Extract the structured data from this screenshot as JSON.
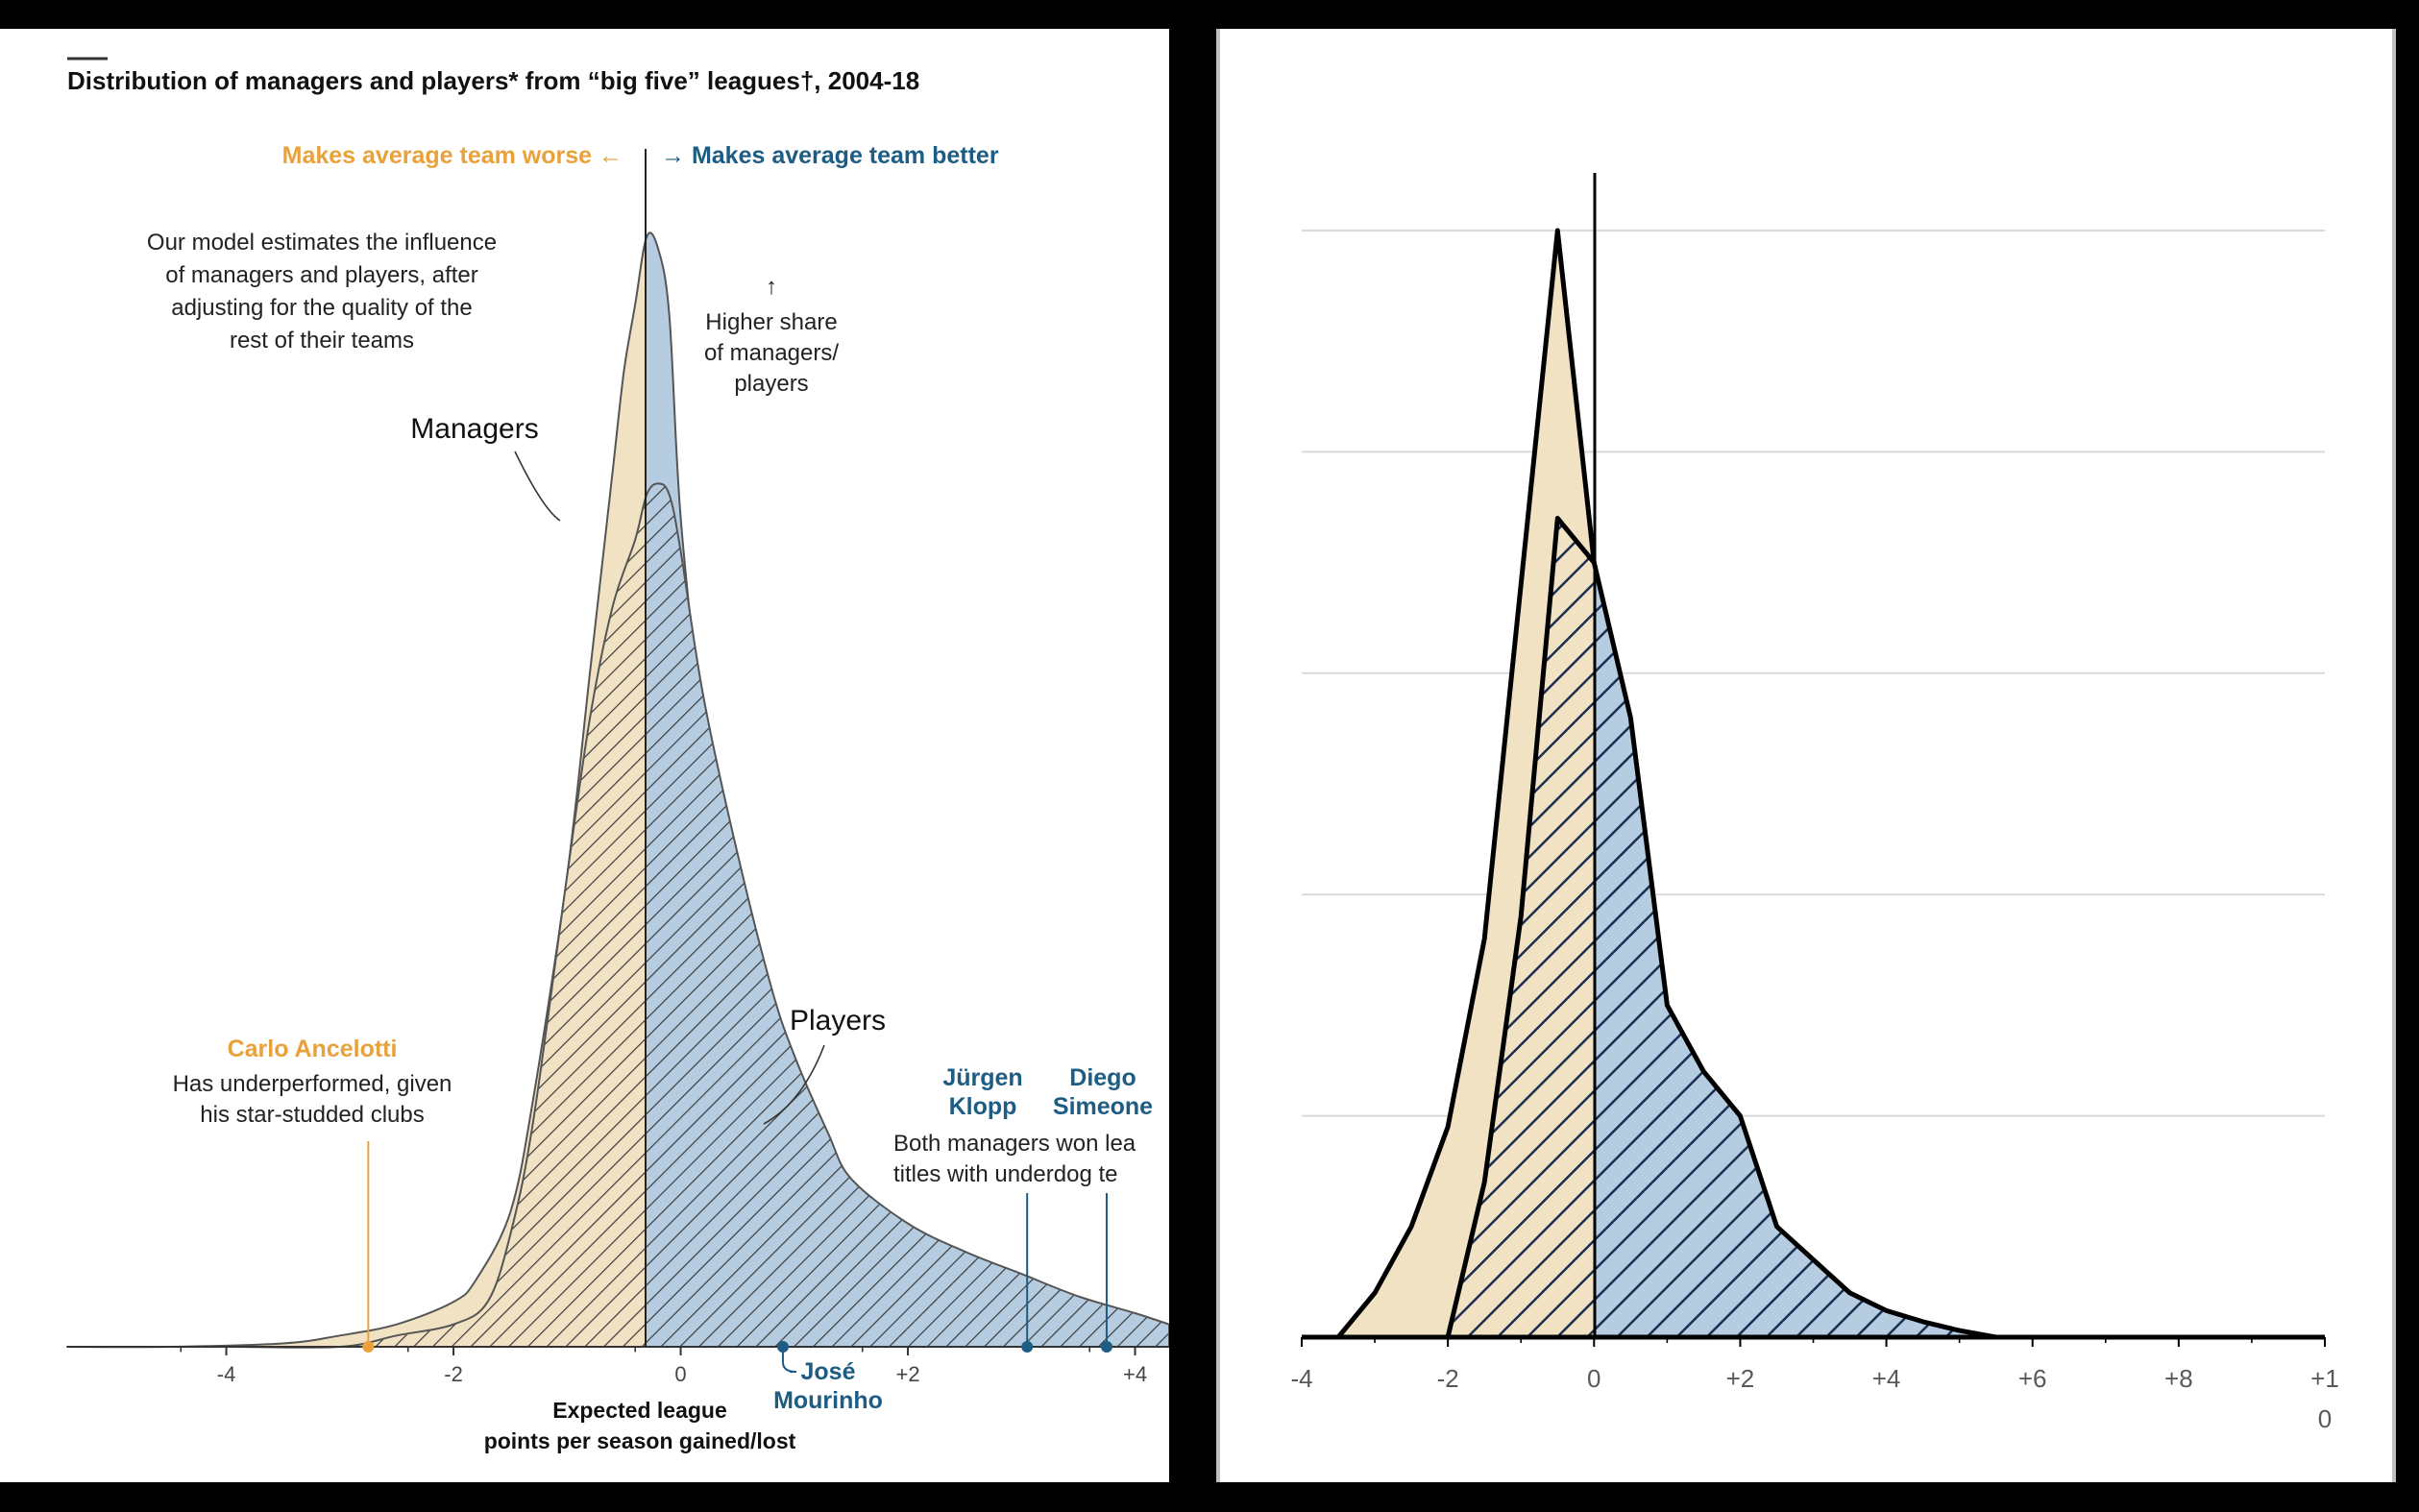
{
  "left_chart": {
    "title": "Distribution of managers and players* from “big five” leagues†, 2004-18",
    "worse_label": "Makes average team worse ←",
    "better_label": "→ Makes average team better",
    "model_note": [
      "Our model estimates the influence",
      "of managers and players, after",
      "adjusting for the quality of the",
      "rest of their teams"
    ],
    "arrow_note": [
      "↑",
      "Higher share",
      "of managers/",
      "players"
    ],
    "managers_label": "Managers",
    "players_label": "Players",
    "ancelotti": {
      "name": "Carlo Ancelotti",
      "note": [
        "Has underperformed, given",
        "his star-studded clubs"
      ],
      "value": -2.75
    },
    "klopp": {
      "name": [
        "Jürgen",
        "Klopp"
      ],
      "value": 3.05
    },
    "simeone": {
      "name": [
        "Diego",
        "Simeone"
      ],
      "value": 3.75
    },
    "both_note": [
      "Both managers won lea",
      "titles with underdog te"
    ],
    "mourinho": {
      "name": [
        "José",
        "Mourinho"
      ],
      "value": 0.9
    },
    "xaxis_title": [
      "Expected league",
      "points per season gained/lost"
    ],
    "colors": {
      "orange": "#e9a13b",
      "blue": "#1d5c83",
      "managers_fill": "#f2e2c4",
      "players_fill": "#b6cde1"
    }
  },
  "chart_data": [
    {
      "type": "area",
      "title": "Distribution of managers and players* from “big five” leagues†, 2004-18",
      "xlabel": "Expected league points per season gained/lost",
      "xlim": [
        -5.4,
        4.3
      ],
      "ylim": [
        0,
        1
      ],
      "xticks": [
        -4,
        -2,
        0,
        2,
        4
      ],
      "xtick_labels": [
        "-4",
        "-2",
        "0",
        "+2",
        "+4"
      ],
      "series": [
        {
          "name": "Managers",
          "x": [
            -5.4,
            -4.5,
            -3.5,
            -3.0,
            -2.5,
            -2.0,
            -1.8,
            -1.5,
            -1.3,
            -1.0,
            -0.8,
            -0.6,
            -0.5,
            -0.4,
            -0.3,
            -0.2,
            -0.1,
            0,
            0.2,
            0.3,
            0.5,
            0.8,
            1.0,
            1.3,
            1.5,
            2.0,
            2.5,
            3.0,
            3.5,
            4.0,
            4.3
          ],
          "y": [
            0,
            0,
            0.003,
            0.01,
            0.02,
            0.04,
            0.06,
            0.12,
            0.22,
            0.42,
            0.6,
            0.78,
            0.87,
            0.93,
            0.99,
            0.98,
            0.92,
            0.74,
            0.54,
            0.46,
            0.36,
            0.25,
            0.18,
            0.12,
            0.09,
            0.05,
            0.03,
            0.02,
            0.01,
            0.005,
            0.002
          ]
        },
        {
          "name": "Players",
          "x": [
            -5.4,
            -4.0,
            -3.0,
            -2.5,
            -2.0,
            -1.7,
            -1.5,
            -1.3,
            -1.0,
            -0.8,
            -0.6,
            -0.4,
            -0.3,
            -0.2,
            -0.1,
            0,
            0.2,
            0.5,
            0.8,
            1.0,
            1.3,
            1.5,
            2.0,
            2.5,
            3.0,
            3.5,
            4.0,
            4.3
          ],
          "y": [
            0,
            0,
            0,
            0.01,
            0.02,
            0.04,
            0.1,
            0.2,
            0.42,
            0.56,
            0.66,
            0.72,
            0.76,
            0.77,
            0.76,
            0.71,
            0.58,
            0.44,
            0.32,
            0.26,
            0.19,
            0.15,
            0.11,
            0.085,
            0.065,
            0.045,
            0.03,
            0.02
          ]
        }
      ]
    },
    {
      "type": "area",
      "title": "",
      "xlim": [
        -4,
        10
      ],
      "ylim": [
        0,
        5
      ],
      "xticks": [
        -4,
        -2,
        0,
        2,
        4,
        6,
        8,
        10
      ],
      "xtick_labels": [
        "-4",
        "-2",
        "0",
        "+2",
        "+4",
        "+6",
        "+8",
        "+1\n0"
      ],
      "gridlines": [
        1,
        2,
        3,
        4,
        5
      ],
      "series": [
        {
          "name": "Managers",
          "x": [
            -3.5,
            -3.0,
            -2.5,
            -2.0,
            -1.5,
            -1.0,
            -0.5,
            0,
            0.5,
            1.0,
            1.5,
            2.0,
            2.5,
            3.0,
            3.5
          ],
          "y": [
            0,
            0.2,
            0.5,
            0.95,
            1.8,
            3.4,
            5.0,
            3.5,
            2.2,
            1.2,
            0.7,
            0.35,
            0.15,
            0.05,
            0
          ]
        },
        {
          "name": "Players",
          "x": [
            -2.0,
            -1.5,
            -1.0,
            -0.5,
            0,
            0.5,
            1.0,
            1.5,
            2.0,
            2.5,
            3.0,
            3.5,
            4.0,
            4.5,
            5.0,
            5.5
          ],
          "y": [
            0,
            0.7,
            1.9,
            3.7,
            3.5,
            2.8,
            1.5,
            1.2,
            1.0,
            0.5,
            0.35,
            0.2,
            0.12,
            0.07,
            0.03,
            0
          ]
        }
      ]
    }
  ]
}
